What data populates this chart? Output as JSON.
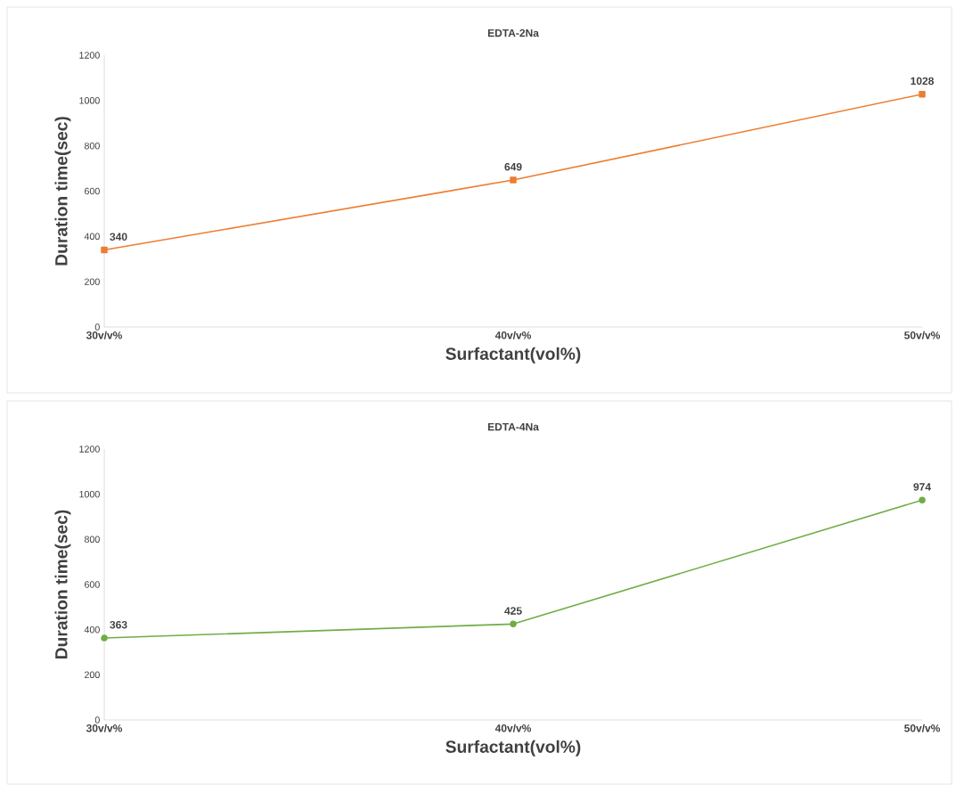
{
  "chart_data": [
    {
      "type": "line",
      "title": "EDTA-2Na",
      "xlabel": "Surfactant(vol%)",
      "ylabel": "Duration time(sec)",
      "categories": [
        "30v/v%",
        "40v/v%",
        "50v/v%"
      ],
      "values": [
        340,
        649,
        1028
      ],
      "color": "#ed7d31",
      "marker": "square",
      "ylim": [
        0,
        1200
      ],
      "yticks": [
        0,
        200,
        400,
        600,
        800,
        1000,
        1200
      ],
      "data_labels": true,
      "grid": false
    },
    {
      "type": "line",
      "title": "EDTA-4Na",
      "xlabel": "Surfactant(vol%)",
      "ylabel": "Duration time(sec)",
      "categories": [
        "30v/v%",
        "40v/v%",
        "50v/v%"
      ],
      "values": [
        363,
        425,
        974
      ],
      "color": "#70ad47",
      "marker": "circle",
      "ylim": [
        0,
        1200
      ],
      "yticks": [
        0,
        200,
        400,
        600,
        800,
        1000,
        1200
      ],
      "data_labels": true,
      "grid": false
    }
  ]
}
